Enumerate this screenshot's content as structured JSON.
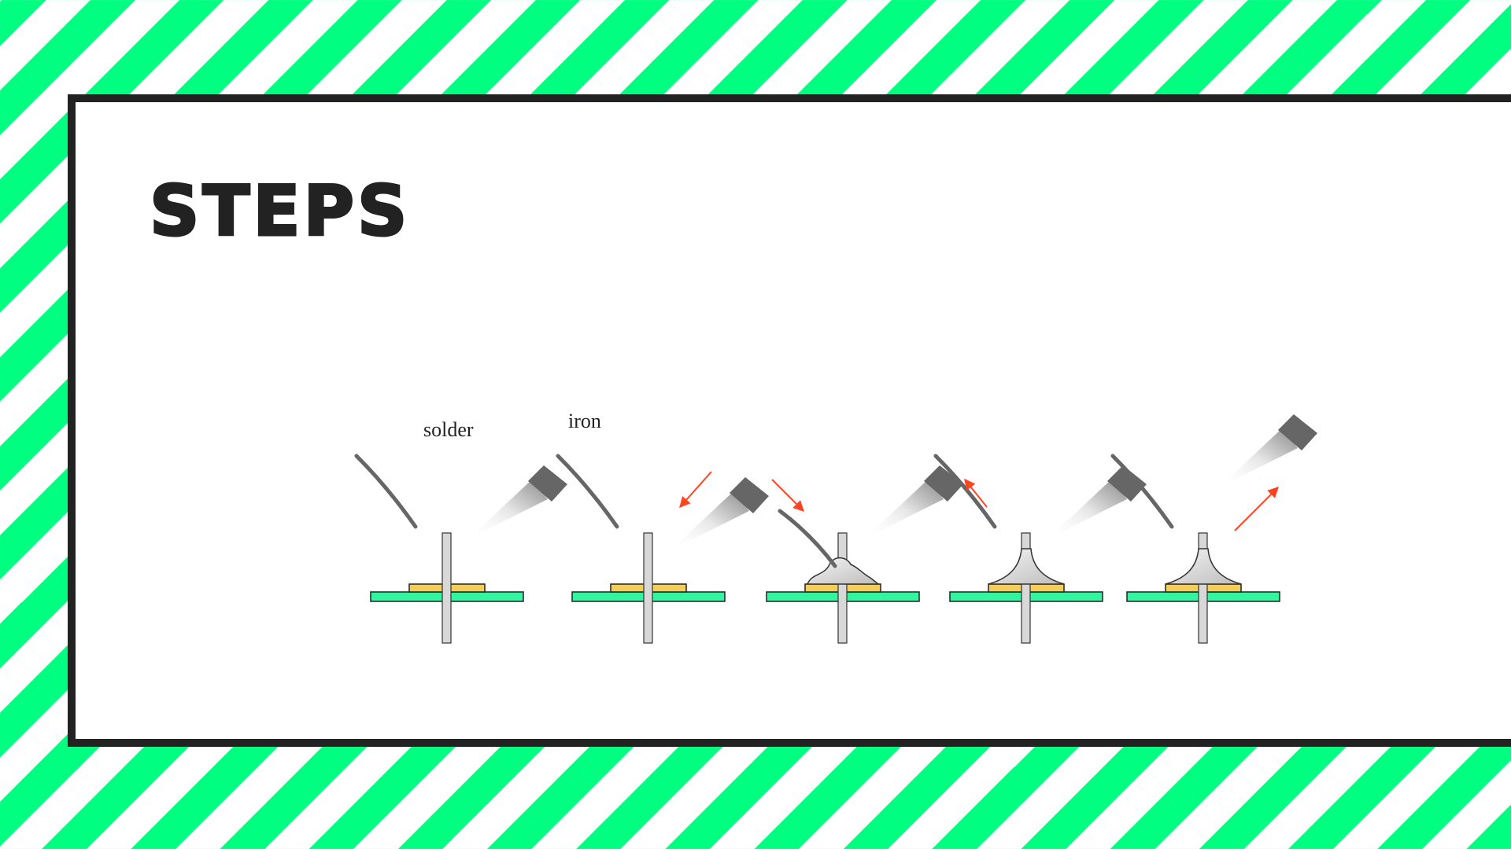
{
  "slide": {
    "title": "STEPS"
  },
  "diagram": {
    "labels": {
      "solder": "solder",
      "iron": "iron"
    },
    "steps": [
      {
        "solder_melted": false,
        "iron_arrow": "none",
        "solder_arrow": "none",
        "fillet": "none"
      },
      {
        "solder_melted": false,
        "iron_arrow": "toward",
        "solder_arrow": "none",
        "fillet": "none"
      },
      {
        "solder_melted": true,
        "iron_arrow": "none",
        "solder_arrow": "toward",
        "fillet": "blob"
      },
      {
        "solder_melted": true,
        "iron_arrow": "none",
        "solder_arrow": "away",
        "fillet": "cone"
      },
      {
        "solder_melted": true,
        "iron_arrow": "away",
        "solder_arrow": "none",
        "fillet": "cone"
      }
    ],
    "colors": {
      "board": "#33f5a0",
      "pad": "#f2cf5b",
      "lead": "#d8d8d8",
      "iron_tip": "#666666",
      "arrow": "#ff4422",
      "wire": "#666666"
    }
  }
}
